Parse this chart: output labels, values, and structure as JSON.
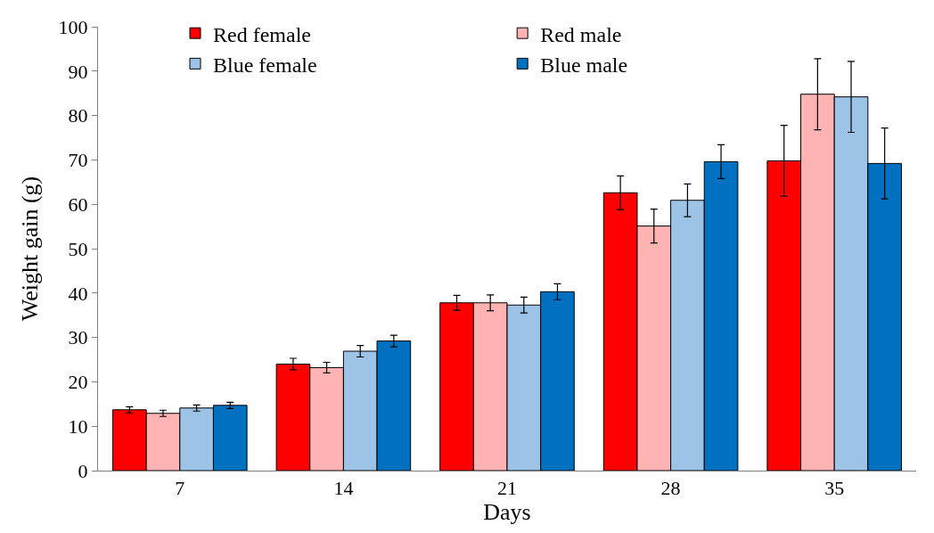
{
  "chart_data": {
    "type": "bar",
    "xlabel": "Days",
    "ylabel": "Weight gain (g)",
    "categories": [
      "7",
      "14",
      "21",
      "28",
      "35"
    ],
    "series": [
      {
        "name": "Red female",
        "color": "#ff0000",
        "values": [
          13.7,
          24.0,
          37.8,
          62.6,
          69.8
        ],
        "errors": [
          0.7,
          1.3,
          1.7,
          3.8,
          8.0
        ]
      },
      {
        "name": "Red male",
        "color": "#ffb3b3",
        "values": [
          12.9,
          23.2,
          37.8,
          55.1,
          84.8
        ],
        "errors": [
          0.7,
          1.2,
          1.8,
          3.8,
          8.0
        ]
      },
      {
        "name": "Blue female",
        "color": "#9dc3e6",
        "values": [
          14.1,
          26.9,
          37.3,
          60.9,
          84.2
        ],
        "errors": [
          0.7,
          1.3,
          1.8,
          3.7,
          8.0
        ]
      },
      {
        "name": "Blue male",
        "color": "#0070c0",
        "values": [
          14.7,
          29.2,
          40.3,
          69.6,
          69.2
        ],
        "errors": [
          0.7,
          1.3,
          1.8,
          3.8,
          8.0
        ]
      }
    ],
    "ylim": [
      0,
      100
    ],
    "yticks": [
      0,
      10,
      20,
      30,
      40,
      50,
      60,
      70,
      80,
      90,
      100
    ],
    "legend": "top"
  }
}
